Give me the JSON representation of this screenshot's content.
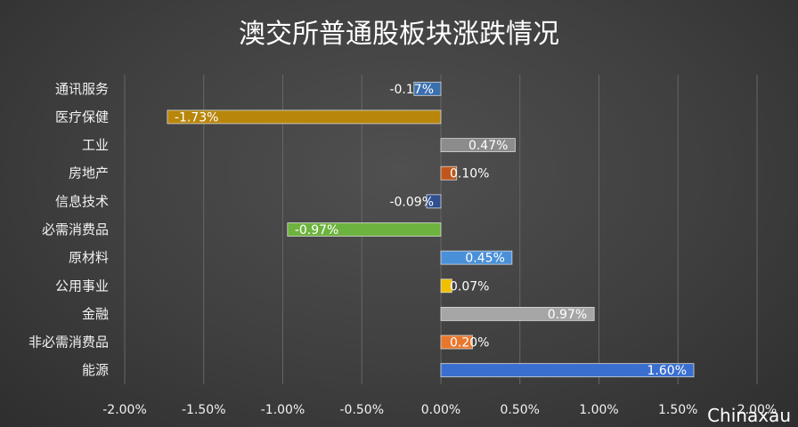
{
  "chart_data": {
    "type": "bar",
    "orientation": "horizontal",
    "title": "澳交所普通股板块涨跌情况",
    "categories": [
      "通讯服务",
      "医疗保健",
      "工业",
      "房地产",
      "信息技术",
      "必需消费品",
      "原材料",
      "公用事业",
      "金融",
      "非必需消费品",
      "能源"
    ],
    "values": [
      -0.17,
      -1.73,
      0.47,
      0.1,
      -0.09,
      -0.97,
      0.45,
      0.07,
      0.97,
      0.2,
      1.6
    ],
    "data_labels": [
      "-0.17%",
      "-1.73%",
      "0.47%",
      "0.10%",
      "-0.09%",
      "-0.97%",
      "0.45%",
      "0.07%",
      "0.97%",
      "0.20%",
      "1.60%"
    ],
    "colors": [
      "#3a6fb0",
      "#b8860b",
      "#8c8c8c",
      "#c0561c",
      "#2f4f8f",
      "#6db33f",
      "#4a90d9",
      "#f0c000",
      "#a6a6a6",
      "#e8772e",
      "#3a6fd0"
    ],
    "xlim": [
      -2.0,
      2.0
    ],
    "xticks": [
      "-2.00%",
      "-1.50%",
      "-1.00%",
      "-0.50%",
      "0.00%",
      "0.50%",
      "1.00%",
      "1.50%",
      "2.00%"
    ],
    "xtick_values": [
      -2.0,
      -1.5,
      -1.0,
      -0.5,
      0.0,
      0.5,
      1.0,
      1.5,
      2.0
    ],
    "grid": "vertical",
    "legend": "none",
    "xlabel": "",
    "ylabel": ""
  },
  "watermark": "Chinaxau"
}
